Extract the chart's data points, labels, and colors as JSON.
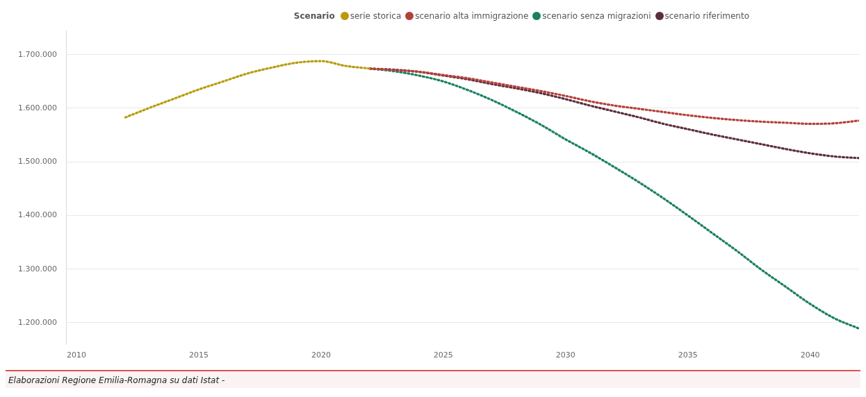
{
  "chart_data": {
    "type": "line",
    "legend_title": "Scenario",
    "xlim": [
      2009.6,
      2042
    ],
    "xticks": [
      2010,
      2015,
      2020,
      2025,
      2030,
      2035,
      2040
    ],
    "ylim": [
      1160000,
      1745000
    ],
    "yticks": [
      {
        "value": 1200000,
        "label": "1.200.000"
      },
      {
        "value": 1300000,
        "label": "1.300.000"
      },
      {
        "value": 1400000,
        "label": "1.400.000"
      },
      {
        "value": 1500000,
        "label": "1.500.000"
      },
      {
        "value": 1600000,
        "label": "1.600.000"
      },
      {
        "value": 1700000,
        "label": "1.700.000"
      }
    ],
    "grid": "y",
    "legend": "top right",
    "marker": "none",
    "line_style": "dotted",
    "annotations": [
      "Elaborazioni Regione Emilia-Romagna su dati Istat -"
    ],
    "series": [
      {
        "name": "serie storica",
        "color": "#b89b0c",
        "x": [
          2012,
          2013,
          2014,
          2015,
          2016,
          2017,
          2018,
          2019,
          2020,
          2021,
          2022
        ],
        "values": [
          1583000,
          1601000,
          1618000,
          1635000,
          1650000,
          1665000,
          1676000,
          1685000,
          1688000,
          1679000,
          1674000
        ]
      },
      {
        "name": "scenario alta immigrazione",
        "color": "#b5403a",
        "x": [
          2022,
          2023,
          2024,
          2025,
          2026,
          2027,
          2028,
          2029,
          2030,
          2031,
          2032,
          2033,
          2034,
          2035,
          2036,
          2037,
          2038,
          2039,
          2040,
          2041,
          2042
        ],
        "values": [
          1674000,
          1671000,
          1668000,
          1662000,
          1656000,
          1648000,
          1640000,
          1632000,
          1623000,
          1613000,
          1605000,
          1599000,
          1593000,
          1587000,
          1582000,
          1578000,
          1575000,
          1573000,
          1571000,
          1572000,
          1577000
        ]
      },
      {
        "name": "scenario senza migrazioni",
        "color": "#1a8060",
        "x": [
          2022,
          2023,
          2024,
          2025,
          2026,
          2027,
          2028,
          2029,
          2030,
          2031,
          2032,
          2033,
          2034,
          2035,
          2036,
          2037,
          2038,
          2039,
          2040,
          2041,
          2042
        ],
        "values": [
          1674000,
          1669000,
          1661000,
          1650000,
          1634000,
          1615000,
          1593000,
          1569000,
          1542000,
          1517000,
          1490000,
          1462000,
          1432000,
          1400000,
          1367000,
          1334000,
          1299000,
          1267000,
          1235000,
          1208000,
          1189000
        ]
      },
      {
        "name": "scenario riferimento",
        "color": "#5c2d3e",
        "x": [
          2022,
          2023,
          2024,
          2025,
          2026,
          2027,
          2028,
          2029,
          2030,
          2031,
          2032,
          2033,
          2034,
          2035,
          2036,
          2037,
          2038,
          2039,
          2040,
          2041,
          2042
        ],
        "values": [
          1674000,
          1672000,
          1668000,
          1661000,
          1654000,
          1645000,
          1637000,
          1628000,
          1617000,
          1605000,
          1594000,
          1583000,
          1571000,
          1561000,
          1551000,
          1542000,
          1533000,
          1524000,
          1516000,
          1510000,
          1507000
        ]
      }
    ]
  }
}
